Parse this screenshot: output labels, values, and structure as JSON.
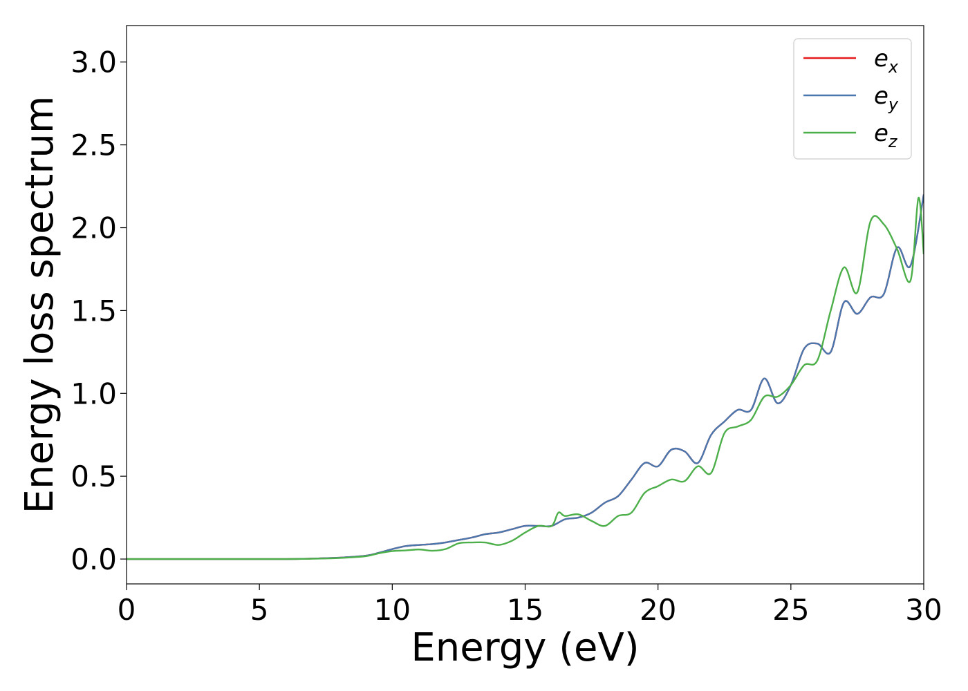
{
  "chart_data": {
    "type": "line",
    "xlabel": "Energy (eV)",
    "ylabel": "Energy loss spectrum",
    "xlim": [
      0,
      30
    ],
    "ylim": [
      -0.15,
      3.22
    ],
    "xticks": [
      0,
      5,
      10,
      15,
      20,
      25,
      30
    ],
    "xtick_labels": [
      "0",
      "5",
      "10",
      "15",
      "20",
      "25",
      "30"
    ],
    "yticks": [
      0.0,
      0.5,
      1.0,
      1.5,
      2.0,
      2.5,
      3.0
    ],
    "ytick_labels": [
      "0.0",
      "0.5",
      "1.0",
      "1.5",
      "2.0",
      "2.5",
      "3.0"
    ],
    "grid": false,
    "legend_position": "top-right",
    "series": [
      {
        "name": "e_x",
        "label_base": "e",
        "label_sub": "x",
        "color": "#e41a1c",
        "x": [
          0,
          2,
          4,
          6,
          7,
          8,
          9,
          9.5,
          10,
          10.5,
          11,
          11.5,
          12,
          12.5,
          13,
          13.5,
          14,
          14.5,
          15,
          15.5,
          16,
          16.5,
          17,
          17.5,
          18,
          18.5,
          19,
          19.5,
          20,
          20.5,
          21,
          21.5,
          22,
          22.5,
          23,
          23.5,
          24,
          24.5,
          25,
          25.5,
          26,
          26.5,
          27,
          27.5,
          28,
          28.5,
          29,
          29.5,
          30
        ],
        "y": [
          0,
          0,
          0,
          0,
          0.003,
          0.008,
          0.02,
          0.038,
          0.06,
          0.078,
          0.085,
          0.09,
          0.1,
          0.115,
          0.13,
          0.15,
          0.16,
          0.18,
          0.2,
          0.2,
          0.2,
          0.24,
          0.25,
          0.28,
          0.34,
          0.38,
          0.48,
          0.58,
          0.56,
          0.66,
          0.65,
          0.58,
          0.75,
          0.83,
          0.9,
          0.9,
          1.09,
          0.94,
          1.05,
          1.27,
          1.3,
          1.25,
          1.55,
          1.48,
          1.58,
          1.6,
          1.88,
          1.77,
          2.2
        ]
      },
      {
        "name": "e_y",
        "label_base": "e",
        "label_sub": "y",
        "color": "#4a77ad",
        "x": [
          0,
          2,
          4,
          6,
          7,
          8,
          9,
          9.5,
          10,
          10.5,
          11,
          11.5,
          12,
          12.5,
          13,
          13.5,
          14,
          14.5,
          15,
          15.5,
          16,
          16.5,
          17,
          17.5,
          18,
          18.5,
          19,
          19.5,
          20,
          20.5,
          21,
          21.5,
          22,
          22.5,
          23,
          23.5,
          24,
          24.5,
          25,
          25.5,
          26,
          26.5,
          27,
          27.5,
          28,
          28.5,
          29,
          29.5,
          30
        ],
        "y": [
          0,
          0,
          0,
          0,
          0.003,
          0.008,
          0.02,
          0.038,
          0.06,
          0.078,
          0.085,
          0.09,
          0.1,
          0.115,
          0.13,
          0.15,
          0.16,
          0.18,
          0.2,
          0.2,
          0.2,
          0.24,
          0.25,
          0.28,
          0.34,
          0.38,
          0.48,
          0.58,
          0.56,
          0.66,
          0.65,
          0.58,
          0.75,
          0.83,
          0.9,
          0.9,
          1.09,
          0.94,
          1.05,
          1.27,
          1.3,
          1.25,
          1.55,
          1.48,
          1.58,
          1.6,
          1.88,
          1.77,
          2.2
        ]
      },
      {
        "name": "e_z",
        "label_base": "e",
        "label_sub": "z",
        "color": "#4daf4a",
        "x": [
          0,
          2,
          4,
          6,
          7,
          8,
          9,
          9.5,
          10,
          10.5,
          11,
          11.5,
          12,
          12.5,
          13,
          13.5,
          14,
          14.5,
          15,
          15.5,
          16,
          16.25,
          16.5,
          17,
          17.5,
          18,
          18.5,
          19,
          19.5,
          20,
          20.5,
          21,
          21.5,
          22,
          22.5,
          23,
          23.5,
          24,
          24.5,
          25,
          25.5,
          26,
          26.5,
          27,
          27.5,
          28,
          28.5,
          29,
          29.5,
          29.8,
          30
        ],
        "y": [
          0,
          0,
          0,
          0,
          0.002,
          0.006,
          0.017,
          0.035,
          0.048,
          0.052,
          0.058,
          0.05,
          0.06,
          0.095,
          0.1,
          0.1,
          0.085,
          0.11,
          0.16,
          0.2,
          0.2,
          0.28,
          0.26,
          0.27,
          0.23,
          0.2,
          0.26,
          0.28,
          0.4,
          0.44,
          0.48,
          0.47,
          0.56,
          0.52,
          0.76,
          0.8,
          0.84,
          0.98,
          0.98,
          1.05,
          1.17,
          1.2,
          1.5,
          1.76,
          1.61,
          2.04,
          2.02,
          1.87,
          1.68,
          2.18,
          1.84
        ]
      }
    ]
  }
}
